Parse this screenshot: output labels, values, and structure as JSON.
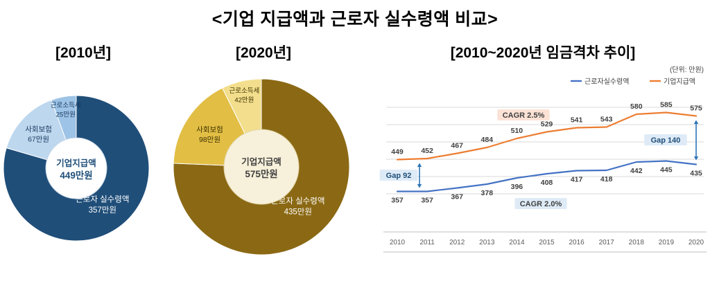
{
  "title": "<기업 지급액과 근로자 실수령액 비교>",
  "chart_data": [
    {
      "type": "pie",
      "title": "[2010년]",
      "total": 449,
      "center": {
        "name": "기업지급액",
        "value": 449,
        "value_label": "449만원",
        "bg": "#FFFFFF",
        "border": "#C9D7E8",
        "text_color": "#1F4E79"
      },
      "slices": [
        {
          "name": "근로자 실수령액",
          "value": 357,
          "value_label": "357만원",
          "color": "#1F4E79",
          "label_color": "#FFFFFF"
        },
        {
          "name": "사회보험",
          "value": 67,
          "value_label": "67만원",
          "color": "#BDD7EE",
          "label_color": "#17375E"
        },
        {
          "name": "근로소득세",
          "value": 25,
          "value_label": "25만원",
          "color": "#9DC3E6",
          "label_color": "#17375E"
        }
      ]
    },
    {
      "type": "pie",
      "title": "[2020년]",
      "total": 575,
      "center": {
        "name": "기업지급액",
        "value": 575,
        "value_label": "575만원",
        "bg": "#F7F0DA",
        "border": "#E0D5A8",
        "text_color": "#404040"
      },
      "slices": [
        {
          "name": "근로자 실수령액",
          "value": 435,
          "value_label": "435만원",
          "color": "#8B6914",
          "label_color": "#FFFFFF"
        },
        {
          "name": "사회보험",
          "value": 98,
          "value_label": "98만원",
          "color": "#E2BE45",
          "label_color": "#3F3200"
        },
        {
          "name": "근로소득세",
          "value": 42,
          "value_label": "42만원",
          "color": "#F2DE8C",
          "label_color": "#3F3200"
        }
      ]
    },
    {
      "type": "line",
      "title": "[2010~2020년 임금격차 추이]",
      "unit_label": "(단위: 만원)",
      "x": [
        2010,
        2011,
        2012,
        2013,
        2014,
        2015,
        2016,
        2017,
        2018,
        2019,
        2020
      ],
      "ylim": [
        340,
        620
      ],
      "grid": true,
      "legend_position": "top-right",
      "series": [
        {
          "name": "근로자실수령액",
          "color": "#4472C4",
          "label_position": "below",
          "values": [
            357,
            357,
            367,
            378,
            396,
            408,
            417,
            418,
            442,
            445,
            435
          ]
        },
        {
          "name": "기업지급액",
          "color": "#ED7D31",
          "label_position": "above",
          "values": [
            449,
            452,
            467,
            484,
            510,
            529,
            541,
            543,
            580,
            585,
            575
          ]
        }
      ],
      "annotations": [
        {
          "id": "cagr-company",
          "text": "CAGR 2.5%",
          "bg": "#FBE2D5",
          "color": "#404040"
        },
        {
          "id": "cagr-worker",
          "text": "CAGR 2.0%",
          "bg": "#DEEBF7",
          "color": "#404040"
        },
        {
          "id": "gap-2010",
          "text": "Gap 92",
          "value": 92,
          "bg": "#DEEBF7",
          "color": "#1F4E79"
        },
        {
          "id": "gap-2020",
          "text": "Gap 140",
          "value": 140,
          "bg": "#DEEBF7",
          "color": "#1F4E79"
        }
      ]
    }
  ]
}
